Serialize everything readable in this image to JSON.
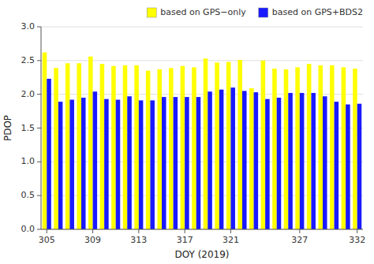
{
  "chart_data": {
    "type": "bar",
    "xlabel": "DOY (2019)",
    "ylabel": "PDOP",
    "categories": [
      "305",
      null,
      null,
      null,
      "309",
      null,
      null,
      null,
      "313",
      null,
      null,
      null,
      "317",
      null,
      null,
      null,
      "321",
      null,
      null,
      null,
      null,
      null,
      "327",
      null,
      null,
      null,
      null,
      "332"
    ],
    "series": [
      {
        "name": "based on GPS−only",
        "color": "#ffff00",
        "values": [
          2.62,
          2.39,
          2.46,
          2.46,
          2.56,
          2.45,
          2.42,
          2.43,
          2.43,
          2.35,
          2.37,
          2.39,
          2.42,
          2.4,
          2.53,
          2.47,
          2.48,
          2.51,
          2.09,
          2.5,
          2.38,
          2.37,
          2.4,
          2.45,
          2.43,
          2.43,
          2.4,
          2.38
        ]
      },
      {
        "name": "based on GPS+BDS2",
        "color": "#1a1aff",
        "values": [
          2.23,
          1.89,
          1.92,
          1.95,
          2.04,
          1.93,
          1.92,
          1.97,
          1.91,
          1.91,
          1.96,
          1.96,
          1.96,
          1.96,
          2.04,
          2.07,
          2.1,
          2.05,
          2.03,
          1.93,
          1.95,
          2.02,
          2.02,
          2.02,
          1.97,
          1.89,
          1.85,
          1.86
        ]
      }
    ],
    "ylim": [
      0,
      3
    ],
    "yticks": [
      {
        "value": 0,
        "label": "0.0"
      },
      0.5,
      {
        "value": 1,
        "label": "1.0"
      },
      1.5,
      {
        "value": 2,
        "label": "2.0"
      },
      2.5,
      {
        "value": 3,
        "label": "3.0"
      }
    ],
    "grid": true,
    "legend": "upper right"
  }
}
